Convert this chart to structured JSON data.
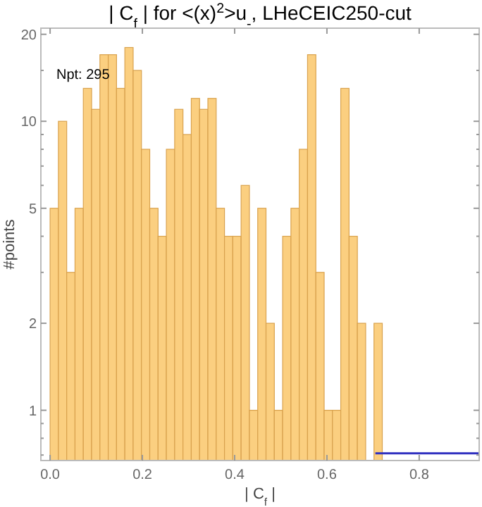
{
  "chart_data": {
    "type": "histogram",
    "title": "| C$_{f}$ | for <(x)$^{2}$>u$_{-}$, LHeCEIC250-cut",
    "xlabel": "| C$_{f}$ |",
    "ylabel": "#points",
    "annotations": [
      "Npt: 295"
    ],
    "bins": [
      0,
      0.018,
      0.036,
      0.054,
      0.072,
      0.09,
      0.108,
      0.126,
      0.144,
      0.162,
      0.18,
      0.198,
      0.216,
      0.234,
      0.252,
      0.27,
      0.288,
      0.306,
      0.324,
      0.342,
      0.36,
      0.378,
      0.396,
      0.414,
      0.432,
      0.45,
      0.468,
      0.486,
      0.504,
      0.522,
      0.54,
      0.558,
      0.576,
      0.594,
      0.612,
      0.63,
      0.648,
      0.666,
      0.684,
      0.702,
      0.72
    ],
    "values": [
      5,
      10,
      3,
      5,
      13,
      11,
      17,
      17,
      13,
      18,
      15,
      8,
      5,
      4,
      8,
      11,
      9,
      12,
      11,
      12,
      5,
      4,
      4,
      6,
      1,
      5,
      2,
      1,
      4,
      5,
      8,
      17,
      3,
      1,
      1,
      13,
      4,
      2,
      null,
      2
    ],
    "color": "#fbcf80",
    "series": [
      {
        "type": "line",
        "color": "#3030c0",
        "x": [
          0.705,
          0.93
        ],
        "values": [
          0.71,
          0.71
        ]
      }
    ],
    "log": "y",
    "xlim": [
      -0.02,
      0.93
    ],
    "ylim": [
      0.67,
      21
    ],
    "xticks": [
      {
        "value": 0,
        "label": "0.0"
      },
      {
        "value": 0.2,
        "label": "0.2"
      },
      {
        "value": 0.4,
        "label": "0.4"
      },
      {
        "value": 0.6,
        "label": "0.6"
      },
      {
        "value": 0.8,
        "label": "0.8"
      }
    ],
    "yticks": [
      {
        "value": 0.7,
        "label": null
      },
      {
        "value": 0.8,
        "label": null
      },
      {
        "value": 0.9,
        "label": null
      },
      1,
      2,
      {
        "value": 3,
        "label": null
      },
      {
        "value": 4,
        "label": null
      },
      5,
      {
        "value": 6,
        "label": null
      },
      {
        "value": 7,
        "label": null
      },
      {
        "value": 8,
        "label": null
      },
      {
        "value": 9,
        "label": null
      },
      10,
      {
        "value": 15,
        "label": null
      },
      20
    ],
    "grid": false
  }
}
